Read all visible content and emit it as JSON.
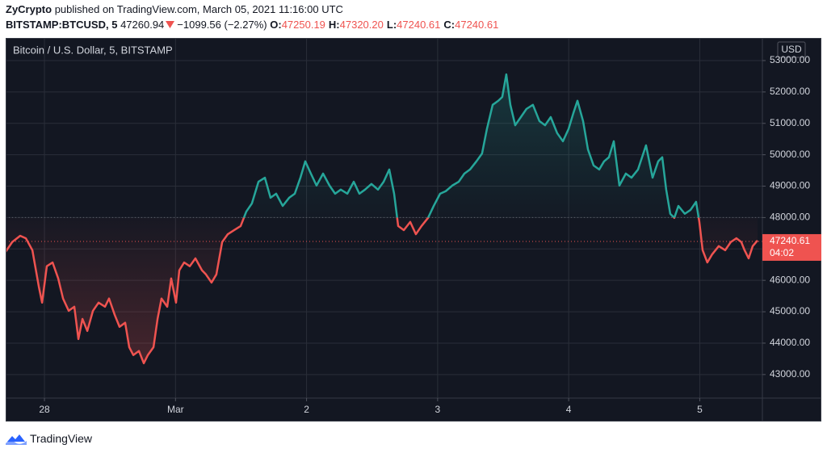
{
  "header": {
    "author": "ZyCrypto",
    "published": "published on TradingView.com, March 05, 2021 11:16:00 UTC",
    "symbol": "BITSTAMP:BTCUSD, 5",
    "price": "47260.94",
    "change": "−1099.56 (−2.27%)",
    "ohlc": [
      {
        "label": "O:",
        "value": "47250.19"
      },
      {
        "label": "H:",
        "value": "47320.20"
      },
      {
        "label": "L:",
        "value": "47240.61"
      },
      {
        "label": "C:",
        "value": "47240.61"
      }
    ]
  },
  "chart_data": {
    "type": "line",
    "title": "Bitcoin / U.S. Dollar, 5, BITSTAMP",
    "y_unit": "USD",
    "up_color": "#26a69a",
    "down_color": "#ef5350",
    "baseline": 48000,
    "last_price": 47240.61,
    "countdown": "04:02",
    "grid": true,
    "xlim": [
      -0.296,
      5.478
    ],
    "xticks": [
      {
        "value": 0,
        "label": "28"
      },
      {
        "value": 1,
        "label": "Mar"
      },
      {
        "value": 2,
        "label": "2"
      },
      {
        "value": 3,
        "label": "3"
      },
      {
        "value": 4,
        "label": "4"
      },
      {
        "value": 5,
        "label": "5"
      }
    ],
    "ylim": [
      42250,
      53720
    ],
    "yticks": [
      {
        "value": 43000,
        "label": "43000.00"
      },
      {
        "value": 44000,
        "label": "44000.00"
      },
      {
        "value": 45000,
        "label": "45000.00"
      },
      {
        "value": 46000,
        "label": "46000.00"
      },
      {
        "value": 47000,
        "label": "47000.00"
      },
      {
        "value": 48000,
        "label": "48000.00"
      },
      {
        "value": 49000,
        "label": "49000.00"
      },
      {
        "value": 50000,
        "label": "50000.00"
      },
      {
        "value": 51000,
        "label": "51000.00"
      },
      {
        "value": 52000,
        "label": "52000.00"
      },
      {
        "value": 53000,
        "label": "53000.00"
      }
    ],
    "x": [
      -0.296,
      -0.246,
      -0.185,
      -0.142,
      -0.092,
      -0.043,
      -0.018,
      0.018,
      0.062,
      0.105,
      0.142,
      0.185,
      0.228,
      0.259,
      0.29,
      0.327,
      0.37,
      0.413,
      0.462,
      0.493,
      0.536,
      0.573,
      0.616,
      0.647,
      0.678,
      0.721,
      0.758,
      0.789,
      0.832,
      0.863,
      0.893,
      0.937,
      0.967,
      1.004,
      1.029,
      1.066,
      1.109,
      1.152,
      1.202,
      1.232,
      1.275,
      1.312,
      1.356,
      1.399,
      1.448,
      1.497,
      1.54,
      1.583,
      1.633,
      1.682,
      1.725,
      1.768,
      1.818,
      1.867,
      1.91,
      1.953,
      1.99,
      2.033,
      2.076,
      2.126,
      2.175,
      2.218,
      2.261,
      2.311,
      2.36,
      2.403,
      2.446,
      2.495,
      2.545,
      2.588,
      2.631,
      2.668,
      2.699,
      2.742,
      2.791,
      2.834,
      2.877,
      2.927,
      2.97,
      3.019,
      3.062,
      3.112,
      3.161,
      3.204,
      3.247,
      3.296,
      3.339,
      3.376,
      3.42,
      3.463,
      3.493,
      3.524,
      3.555,
      3.592,
      3.635,
      3.678,
      3.727,
      3.777,
      3.82,
      3.863,
      3.912,
      3.956,
      3.999,
      4.036,
      4.067,
      4.11,
      4.147,
      4.19,
      4.233,
      4.27,
      4.307,
      4.344,
      4.387,
      4.436,
      4.479,
      4.529,
      4.59,
      4.64,
      4.683,
      4.714,
      4.744,
      4.775,
      4.806,
      4.837,
      4.886,
      4.929,
      4.972,
      4.997,
      5.022,
      5.058,
      5.095,
      5.145,
      5.194,
      5.237,
      5.28,
      5.317,
      5.342,
      5.373,
      5.404,
      5.441
    ],
    "values": [
      46910,
      47220,
      47420,
      47340,
      46960,
      45800,
      45290,
      46450,
      46570,
      46060,
      45420,
      45030,
      45160,
      44130,
      44770,
      44390,
      45030,
      45290,
      45160,
      45420,
      44900,
      44520,
      44650,
      43870,
      43620,
      43750,
      43360,
      43620,
      43870,
      44770,
      45420,
      45160,
      46060,
      45290,
      46320,
      46570,
      46450,
      46700,
      46320,
      46190,
      45930,
      46190,
      47220,
      47470,
      47600,
      47730,
      48190,
      48450,
      49140,
      49270,
      48630,
      48760,
      48370,
      48630,
      48760,
      49270,
      49790,
      49400,
      49020,
      49400,
      49020,
      48760,
      48890,
      48760,
      49140,
      48760,
      48890,
      49070,
      48890,
      49140,
      49530,
      48760,
      47730,
      47600,
      47860,
      47470,
      47730,
      47990,
      48370,
      48760,
      48840,
      49020,
      49140,
      49400,
      49530,
      49790,
      50040,
      50820,
      51590,
      51720,
      51840,
      52560,
      51590,
      50940,
      51200,
      51460,
      51590,
      51070,
      50940,
      51200,
      50690,
      50430,
      50820,
      51330,
      51720,
      51070,
      50170,
      49660,
      49530,
      49790,
      49920,
      50430,
      49020,
      49400,
      49270,
      49530,
      50300,
      49270,
      49790,
      49920,
      48890,
      48120,
      47990,
      48370,
      48120,
      48240,
      48500,
      47860,
      46960,
      46570,
      46830,
      47090,
      46960,
      47220,
      47340,
      47220,
      46960,
      46700,
      47090,
      47270
    ]
  },
  "footer": {
    "brand": "TradingView"
  }
}
